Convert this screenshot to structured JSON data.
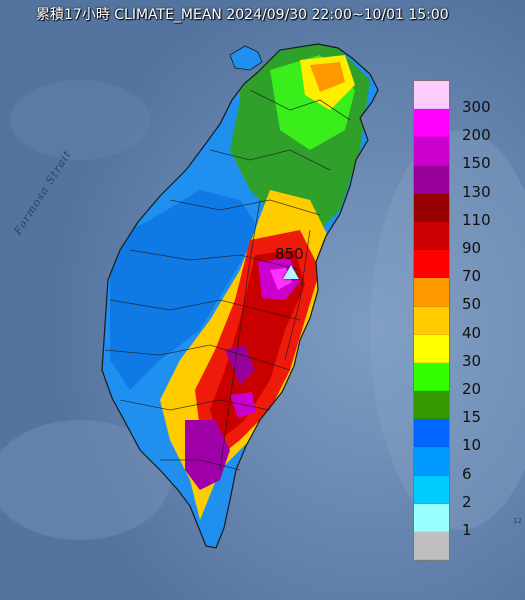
{
  "title": "累積17小時 CLIMATE_MEAN 2024/09/30 22:00~10/01 15:00",
  "strait_label": "Formosa Strait",
  "max_value_label": "850",
  "corner_text": "12",
  "legend": {
    "items": [
      {
        "label": "300",
        "color": "#ffccff"
      },
      {
        "label": "200",
        "color": "#ff00ff"
      },
      {
        "label": "150",
        "color": "#cc00cc"
      },
      {
        "label": "130",
        "color": "#990099"
      },
      {
        "label": "110",
        "color": "#990000"
      },
      {
        "label": "90",
        "color": "#cc0000"
      },
      {
        "label": "70",
        "color": "#ff0000"
      },
      {
        "label": "50",
        "color": "#ff9900"
      },
      {
        "label": "40",
        "color": "#ffcc00"
      },
      {
        "label": "30",
        "color": "#ffff00"
      },
      {
        "label": "20",
        "color": "#33ff00"
      },
      {
        "label": "15",
        "color": "#339900"
      },
      {
        "label": "10",
        "color": "#0066ff"
      },
      {
        "label": "6",
        "color": "#0099ff"
      },
      {
        "label": "2",
        "color": "#00ccff"
      },
      {
        "label": "1",
        "color": "#99ffff"
      },
      {
        "label": "",
        "color": "#bfbfbf"
      }
    ]
  },
  "colors": {
    "sea": "#5f7fa6",
    "land_low": "#2d8ce6",
    "boundary": "#1a1a1a"
  }
}
